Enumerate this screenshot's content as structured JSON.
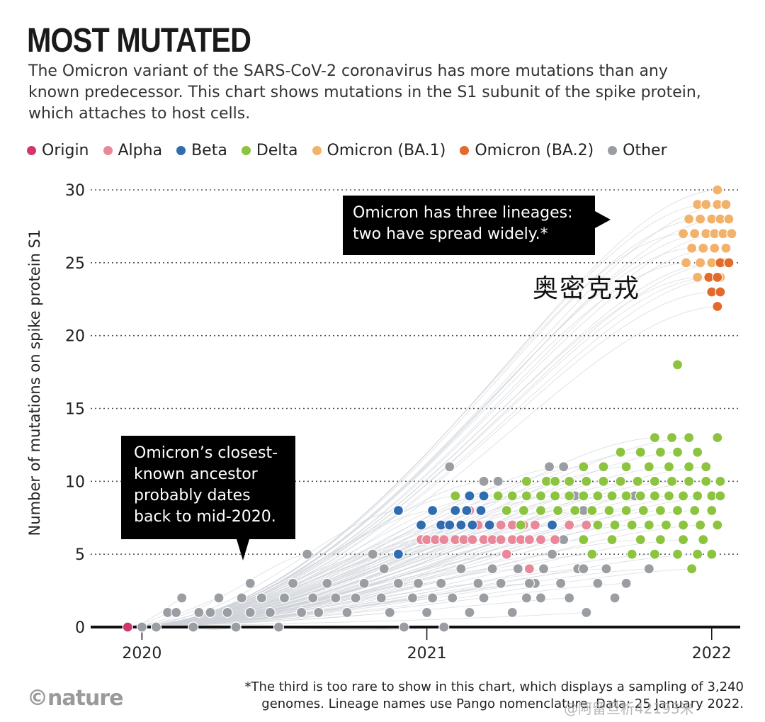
{
  "header": {
    "title": "MOST MUTATED",
    "subtitle": "The Omicron variant of the SARS-CoV-2 coronavirus has more mutations than any known predecessor. This chart shows mutations in the S1 subunit of the spike protein, which attaches to host cells."
  },
  "legend": [
    {
      "label": "Origin",
      "color": "#d0376b"
    },
    {
      "label": "Alpha",
      "color": "#e8889a"
    },
    {
      "label": "Beta",
      "color": "#2f6db0"
    },
    {
      "label": "Delta",
      "color": "#8cc43f"
    },
    {
      "label": "Omicron (BA.1)",
      "color": "#f2b26b"
    },
    {
      "label": "Omicron (BA.2)",
      "color": "#e26a2c"
    },
    {
      "label": "Other",
      "color": "#9a9ea3"
    }
  ],
  "annotations": {
    "omicron_lineages": [
      "Omicron has three lineages:",
      "two have spread widely.*"
    ],
    "ancestor": [
      "Omicron’s closest-",
      "known ancestor",
      "probably dates",
      "back to mid-2020."
    ],
    "overlay_label": "奥密克戎"
  },
  "footer": {
    "logo": "©nature",
    "footnote_line1": "*The third is too rare to show in this chart, which displays a sampling of 3,240",
    "footnote_line2": "genomes. Lineage names use Pango nomenclature. Data: 25 January 2022.",
    "watermark": "@阿留旦析42193米"
  },
  "chart_data": {
    "type": "scatter",
    "title": "MOST MUTATED",
    "xlabel": "",
    "ylabel": "Number of mutations on spike protein S1",
    "xlim": [
      2019.82,
      2022.1
    ],
    "ylim": [
      0,
      30
    ],
    "x_ticks": [
      {
        "value": 2020,
        "label": "2020"
      },
      {
        "value": 2021,
        "label": "2021"
      },
      {
        "value": 2022,
        "label": "2022"
      }
    ],
    "y_ticks": [
      0,
      5,
      10,
      15,
      20,
      25,
      30
    ],
    "grid": "horizontal dotted",
    "series": [
      {
        "name": "Origin",
        "color": "#d0376b",
        "points": [
          [
            2019.95,
            0
          ]
        ]
      },
      {
        "name": "Other",
        "color": "#9a9ea3",
        "points": [
          [
            2020.0,
            0
          ],
          [
            2020.05,
            0
          ],
          [
            2020.09,
            1
          ],
          [
            2020.12,
            1
          ],
          [
            2020.14,
            2
          ],
          [
            2020.18,
            0
          ],
          [
            2020.2,
            1
          ],
          [
            2020.24,
            1
          ],
          [
            2020.27,
            2
          ],
          [
            2020.3,
            1
          ],
          [
            2020.33,
            0
          ],
          [
            2020.35,
            2
          ],
          [
            2020.38,
            1
          ],
          [
            2020.42,
            2
          ],
          [
            2020.45,
            1
          ],
          [
            2020.48,
            0
          ],
          [
            2020.5,
            2
          ],
          [
            2020.53,
            3
          ],
          [
            2020.56,
            1
          ],
          [
            2020.6,
            2
          ],
          [
            2020.62,
            1
          ],
          [
            2020.65,
            3
          ],
          [
            2020.68,
            2
          ],
          [
            2020.72,
            1
          ],
          [
            2020.75,
            2
          ],
          [
            2020.78,
            3
          ],
          [
            2020.81,
            5
          ],
          [
            2020.84,
            2
          ],
          [
            2020.87,
            1
          ],
          [
            2020.9,
            3
          ],
          [
            2020.92,
            0
          ],
          [
            2020.95,
            2
          ],
          [
            2020.97,
            3
          ],
          [
            2021.0,
            1
          ],
          [
            2021.02,
            2
          ],
          [
            2021.05,
            3
          ],
          [
            2021.06,
            0
          ],
          [
            2021.09,
            2
          ],
          [
            2021.12,
            4
          ],
          [
            2021.15,
            1
          ],
          [
            2021.18,
            3
          ],
          [
            2021.2,
            2
          ],
          [
            2021.23,
            4
          ],
          [
            2021.26,
            3
          ],
          [
            2021.28,
            5
          ],
          [
            2021.3,
            1
          ],
          [
            2021.32,
            4
          ],
          [
            2021.35,
            2
          ],
          [
            2021.38,
            3
          ],
          [
            2021.41,
            4
          ],
          [
            2021.44,
            5
          ],
          [
            2021.47,
            3
          ],
          [
            2021.5,
            2
          ],
          [
            2021.53,
            4
          ],
          [
            2021.56,
            1
          ],
          [
            2021.6,
            3
          ],
          [
            2021.63,
            4
          ],
          [
            2021.66,
            2
          ],
          [
            2021.7,
            3
          ],
          [
            2021.08,
            11
          ],
          [
            2021.2,
            10
          ],
          [
            2021.25,
            10
          ],
          [
            2021.3,
            9
          ],
          [
            2021.43,
            11
          ],
          [
            2021.48,
            11
          ],
          [
            2021.52,
            9
          ],
          [
            2021.55,
            8
          ],
          [
            2021.48,
            6
          ],
          [
            2021.55,
            4
          ],
          [
            2021.73,
            9
          ],
          [
            2021.78,
            4
          ],
          [
            2020.38,
            3
          ],
          [
            2020.58,
            5
          ],
          [
            2020.85,
            4
          ],
          [
            2021.36,
            3
          ],
          [
            2021.4,
            2
          ]
        ]
      },
      {
        "name": "Alpha",
        "color": "#e8889a",
        "points": [
          [
            2020.98,
            6
          ],
          [
            2021.0,
            6
          ],
          [
            2021.03,
            6
          ],
          [
            2021.06,
            6
          ],
          [
            2021.1,
            6
          ],
          [
            2021.13,
            6
          ],
          [
            2021.16,
            6
          ],
          [
            2021.2,
            6
          ],
          [
            2021.23,
            6
          ],
          [
            2021.26,
            6
          ],
          [
            2021.3,
            6
          ],
          [
            2021.33,
            6
          ],
          [
            2021.36,
            6
          ],
          [
            2021.4,
            6
          ],
          [
            2021.45,
            6
          ],
          [
            2021.55,
            6
          ],
          [
            2021.06,
            7
          ],
          [
            2021.12,
            7
          ],
          [
            2021.18,
            7
          ],
          [
            2021.22,
            7
          ],
          [
            2021.26,
            7
          ],
          [
            2021.3,
            7
          ],
          [
            2021.34,
            7
          ],
          [
            2021.38,
            7
          ],
          [
            2021.44,
            7
          ],
          [
            2021.5,
            7
          ],
          [
            2021.56,
            7
          ],
          [
            2021.15,
            8
          ],
          [
            2021.28,
            5
          ],
          [
            2021.36,
            4
          ]
        ]
      },
      {
        "name": "Beta",
        "color": "#2f6db0",
        "points": [
          [
            2020.9,
            8
          ],
          [
            2020.98,
            7
          ],
          [
            2021.02,
            8
          ],
          [
            2021.05,
            7
          ],
          [
            2021.08,
            7
          ],
          [
            2021.1,
            8
          ],
          [
            2021.12,
            7
          ],
          [
            2021.14,
            8
          ],
          [
            2021.16,
            7
          ],
          [
            2021.19,
            8
          ],
          [
            2021.22,
            7
          ],
          [
            2021.15,
            9
          ],
          [
            2020.9,
            5
          ],
          [
            2021.44,
            7
          ],
          [
            2021.2,
            9
          ]
        ]
      },
      {
        "name": "Delta",
        "color": "#8cc43f",
        "points": [
          [
            2021.25,
            9
          ],
          [
            2021.3,
            9
          ],
          [
            2021.35,
            9
          ],
          [
            2021.4,
            9
          ],
          [
            2021.45,
            9
          ],
          [
            2021.5,
            9
          ],
          [
            2021.55,
            9
          ],
          [
            2021.6,
            9
          ],
          [
            2021.65,
            9
          ],
          [
            2021.7,
            9
          ],
          [
            2021.75,
            9
          ],
          [
            2021.8,
            9
          ],
          [
            2021.85,
            9
          ],
          [
            2021.9,
            9
          ],
          [
            2021.95,
            9
          ],
          [
            2022.0,
            9
          ],
          [
            2022.03,
            9
          ],
          [
            2021.28,
            8
          ],
          [
            2021.34,
            8
          ],
          [
            2021.4,
            8
          ],
          [
            2021.46,
            8
          ],
          [
            2021.52,
            8
          ],
          [
            2021.58,
            8
          ],
          [
            2021.64,
            8
          ],
          [
            2021.7,
            8
          ],
          [
            2021.76,
            8
          ],
          [
            2021.82,
            8
          ],
          [
            2021.88,
            8
          ],
          [
            2021.94,
            8
          ],
          [
            2022.0,
            8
          ],
          [
            2021.35,
            10
          ],
          [
            2021.42,
            10
          ],
          [
            2021.5,
            10
          ],
          [
            2021.56,
            10
          ],
          [
            2021.62,
            10
          ],
          [
            2021.68,
            10
          ],
          [
            2021.74,
            10
          ],
          [
            2021.8,
            10
          ],
          [
            2021.86,
            10
          ],
          [
            2021.92,
            10
          ],
          [
            2021.98,
            10
          ],
          [
            2022.03,
            10
          ],
          [
            2021.55,
            11
          ],
          [
            2021.62,
            11
          ],
          [
            2021.7,
            11
          ],
          [
            2021.78,
            11
          ],
          [
            2021.85,
            11
          ],
          [
            2021.92,
            11
          ],
          [
            2021.98,
            11
          ],
          [
            2021.68,
            12
          ],
          [
            2021.75,
            12
          ],
          [
            2021.82,
            12
          ],
          [
            2021.88,
            12
          ],
          [
            2021.95,
            12
          ],
          [
            2021.8,
            13
          ],
          [
            2021.86,
            13
          ],
          [
            2021.92,
            13
          ],
          [
            2022.02,
            13
          ],
          [
            2021.6,
            7
          ],
          [
            2021.66,
            7
          ],
          [
            2021.72,
            7
          ],
          [
            2021.78,
            7
          ],
          [
            2021.84,
            7
          ],
          [
            2021.9,
            7
          ],
          [
            2021.96,
            7
          ],
          [
            2022.02,
            7
          ],
          [
            2021.55,
            6
          ],
          [
            2021.65,
            6
          ],
          [
            2021.75,
            6
          ],
          [
            2021.82,
            6
          ],
          [
            2021.9,
            6
          ],
          [
            2021.97,
            6
          ],
          [
            2021.58,
            5
          ],
          [
            2021.72,
            5
          ],
          [
            2021.8,
            5
          ],
          [
            2021.88,
            5
          ],
          [
            2021.95,
            5
          ],
          [
            2022.0,
            5
          ],
          [
            2021.93,
            4
          ],
          [
            2021.88,
            18
          ],
          [
            2021.1,
            9
          ],
          [
            2021.45,
            10
          ],
          [
            2021.33,
            7
          ]
        ]
      },
      {
        "name": "Omicron (BA.1)",
        "color": "#f2b26b",
        "points": [
          [
            2022.02,
            30
          ],
          [
            2021.95,
            29
          ],
          [
            2021.98,
            29
          ],
          [
            2022.02,
            29
          ],
          [
            2022.05,
            29
          ],
          [
            2021.92,
            28
          ],
          [
            2021.96,
            28
          ],
          [
            2022.0,
            28
          ],
          [
            2022.03,
            28
          ],
          [
            2022.06,
            28
          ],
          [
            2021.9,
            27
          ],
          [
            2021.94,
            27
          ],
          [
            2021.98,
            27
          ],
          [
            2022.01,
            27
          ],
          [
            2022.04,
            27
          ],
          [
            2022.07,
            27
          ],
          [
            2021.93,
            26
          ],
          [
            2021.97,
            26
          ],
          [
            2022.01,
            26
          ],
          [
            2022.05,
            26
          ],
          [
            2021.91,
            25
          ],
          [
            2021.96,
            25
          ],
          [
            2022.0,
            25
          ],
          [
            2022.04,
            25
          ],
          [
            2021.95,
            24
          ],
          [
            2021.99,
            24
          ],
          [
            2022.03,
            24
          ]
        ]
      },
      {
        "name": "Omicron (BA.2)",
        "color": "#e26a2c",
        "points": [
          [
            2022.03,
            25
          ],
          [
            2022.06,
            25
          ],
          [
            2021.99,
            24
          ],
          [
            2022.02,
            24
          ],
          [
            2022.0,
            23
          ],
          [
            2022.03,
            23
          ],
          [
            2022.02,
            22
          ]
        ]
      }
    ]
  }
}
